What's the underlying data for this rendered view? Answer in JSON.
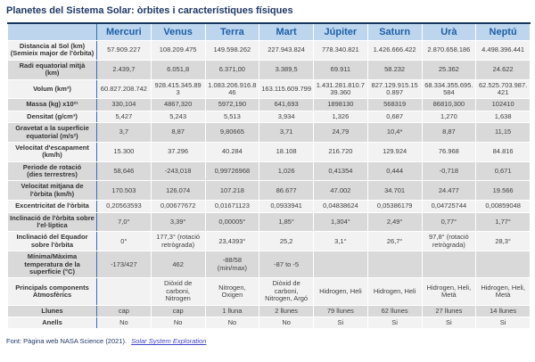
{
  "title": "Planetes del Sistema Solar: òrbites i característiques físiques",
  "colors": {
    "header_bg": "#BDD6EE",
    "header_text": "#1F5FA8",
    "row_gray": "#D9D9D9",
    "row_light": "#F2F2F2",
    "title_text": "#1F3864",
    "table_top_border": "#17365D",
    "label_divider": "#2E74B5",
    "link_color": "#4343CC"
  },
  "table": {
    "columns": [
      "Mercuri",
      "Venus",
      "Terra",
      "Mart",
      "Júpiter",
      "Saturn",
      "Urà",
      "Neptú"
    ],
    "rows": [
      {
        "label": "Distancia al Sol (km)\n(Semieix major de l'òrbita)",
        "shade": "light",
        "values": [
          "57.909.227",
          "108.209.475",
          "149.598.262",
          "227.943.824",
          "778.340.821",
          "1.426.666.422",
          "2.870.658.186",
          "4.498.396.441"
        ]
      },
      {
        "label": "Radi equatorial mitjà\n(km)",
        "shade": "gray",
        "values": [
          "2.439,7",
          "6.051,8",
          "6.371,00",
          "3.389,5",
          "69.911",
          "58.232",
          "25.362",
          "24.622"
        ]
      },
      {
        "label": "Volum (km³)",
        "shade": "light",
        "values": [
          "60.827.208.742",
          "928.415.345.893",
          "1.083.206.916.846",
          "163.115.609.799",
          "1.431.281.810.739.360",
          "827.129.915.150.897",
          "68.334.355.695.584",
          "62.525.703.987.421"
        ]
      },
      {
        "label": "Massa (kg) x10²¹",
        "shade": "gray",
        "values": [
          "330,104",
          "4867,320",
          "5972,190",
          "641,693",
          "1898130",
          "568319",
          "86810,300",
          "102410"
        ]
      },
      {
        "label": "Densitat (g/cm³)",
        "shade": "light",
        "values": [
          "5,427",
          "5,243",
          "5,513",
          "3,934",
          "1,326",
          "0,687",
          "1,270",
          "1,638"
        ]
      },
      {
        "label": "Gravetat a la superficie\nequatorial (m/s²)",
        "shade": "gray",
        "values": [
          "3,7",
          "8,87",
          "9,80665",
          "3,71",
          "24,79",
          "10,4*",
          "8,87",
          "11,15"
        ]
      },
      {
        "label": "Velocitat d'escapament\n(km/h)",
        "shade": "light",
        "values": [
          "15.300",
          "37.296",
          "40.284",
          "18.108",
          "216.720",
          "129.924",
          "76.968",
          "84.816"
        ]
      },
      {
        "label": "Periode de rotació\n(dies terrestres)",
        "shade": "gray",
        "values": [
          "58,646",
          "-243,018",
          "0,99726968",
          "1,026",
          "0,41354",
          "0,444",
          "-0,718",
          "0,671"
        ]
      },
      {
        "label": "Velocitat mitjana de\nl'òrbita (km/h)",
        "shade": "gray",
        "values": [
          "170.503",
          "126.074",
          "107.218",
          "86.677",
          "47.002",
          "34.701",
          "24.477",
          "19.566"
        ]
      },
      {
        "label": "Excentricitat de l'òrbita",
        "shade": "light",
        "values": [
          "0,20563593",
          "0,00677672",
          "0,01671123",
          "0,0933941",
          "0,04838624",
          "0,05386179",
          "0,04725744",
          "0,00859048"
        ]
      },
      {
        "label": "Inclinació de l'òrbita sobre\nl'el·líptica",
        "shade": "gray",
        "values": [
          "7,0°",
          "3,39°",
          "0,00005°",
          "1,85°",
          "1,304°",
          "2,49°",
          "0,77°",
          "1,77°"
        ]
      },
      {
        "label": "Inclinació del Equador\nsobre l'òrbita",
        "shade": "light",
        "values": [
          "0°",
          "177,3° (rotació retrògrada)",
          "23,4393°",
          "25,2",
          "3,1°",
          "26,7°",
          "97,8° (rotació retrògrada)",
          "28,3°"
        ]
      },
      {
        "label": "Mínima/Màxima\ntemperatura de la\nsuperfície (°C)",
        "shade": "gray",
        "values": [
          "-173/427",
          "462",
          "-88/58 (min/max)",
          "-87 to -5",
          "",
          "",
          "",
          ""
        ]
      },
      {
        "label": "Principals components\nAtmosfèrics",
        "shade": "light",
        "values": [
          "",
          "Diòxid de carboni, Nitrogen",
          "Nitrogen, Oxigen",
          "Diòxid de carboni, Nitrogen, Argó",
          "Hidrogen, Heli",
          "Hidrogen, Heli",
          "Hidrogen, Heli, Metà",
          "Hidrogen, Heli, Metà"
        ]
      },
      {
        "label": "Llunes",
        "shade": "gray",
        "values": [
          "cap",
          "cap",
          "1 lluna",
          "2 llunes",
          "79 llunes",
          "62 llunes",
          "27 llunes",
          "14 llunes"
        ]
      },
      {
        "label": "Anells",
        "shade": "light",
        "values": [
          "No",
          "No",
          "No",
          "No",
          "Si",
          "Si",
          "Si",
          "Si"
        ]
      }
    ]
  },
  "footer": {
    "text": "Font: Pàgina web NASA Science (2021).",
    "link_label": "Solar System Exploration"
  }
}
